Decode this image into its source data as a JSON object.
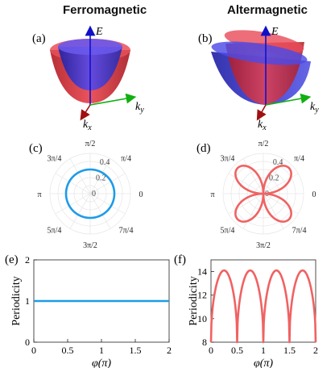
{
  "headers": {
    "left": "Ferromagnetic",
    "right": "Altermagnetic"
  },
  "panel_labels": [
    "(a)",
    "(b)",
    "(c)",
    "(d)",
    "(e)",
    "(f)"
  ],
  "axes3d": {
    "energy": "E",
    "kx": "k",
    "kx_sub": "x",
    "ky": "k",
    "ky_sub": "y"
  },
  "colors": {
    "upper_band": "#e0303a",
    "lower_band": "#2f2fd6",
    "ferro_line": "#1e9be8",
    "alter_line": "#f06262",
    "axis_blue": "#1010c8",
    "axis_green": "#10b010",
    "axis_red": "#a01010"
  },
  "chart_data": [
    {
      "panel": "(c)",
      "type": "polar",
      "angle_labels": [
        "0",
        "π/4",
        "π/2",
        "3π/4",
        "π",
        "5π/4",
        "3π/2",
        "7π/4"
      ],
      "r_ticks": [
        "0",
        "0.2",
        "0.4"
      ],
      "r_max": 0.5,
      "series": [
        {
          "shape": "circle",
          "r": 0.3
        }
      ]
    },
    {
      "panel": "(d)",
      "type": "polar",
      "angle_labels": [
        "0",
        "π/4",
        "π/2",
        "3π/4",
        "π",
        "5π/4",
        "3π/2",
        "7π/4"
      ],
      "r_ticks": [
        "0",
        "0.2",
        "0.4"
      ],
      "r_max": 0.5,
      "series": [
        {
          "shape": "four-petal rose",
          "r_max": 0.45,
          "petal_directions": [
            "π/4",
            "3π/4",
            "5π/4",
            "7π/4"
          ]
        }
      ]
    },
    {
      "panel": "(e)",
      "type": "line",
      "xlabel": "φ(π)",
      "ylabel": "Periodicity",
      "xlim": [
        0,
        2
      ],
      "ylim": [
        0,
        2
      ],
      "xticks": [
        "0",
        "0.5",
        "1",
        "1.5",
        "2"
      ],
      "yticks": [
        "0",
        "1",
        "2"
      ],
      "x": [
        0,
        2
      ],
      "values": [
        1,
        1
      ]
    },
    {
      "panel": "(f)",
      "type": "line",
      "xlabel": "φ(π)",
      "ylabel": "Periodicity",
      "xlim": [
        0,
        2
      ],
      "ylim": [
        8,
        15
      ],
      "xticks": [
        "0",
        "0.5",
        "1",
        "1.5",
        "2"
      ],
      "yticks": [
        "8",
        "10",
        "12",
        "14"
      ],
      "periodic_arches": {
        "minima_x": [
          0,
          0.5,
          1,
          1.5,
          2
        ],
        "min_value": 8,
        "max_value": 14.1
      }
    }
  ]
}
